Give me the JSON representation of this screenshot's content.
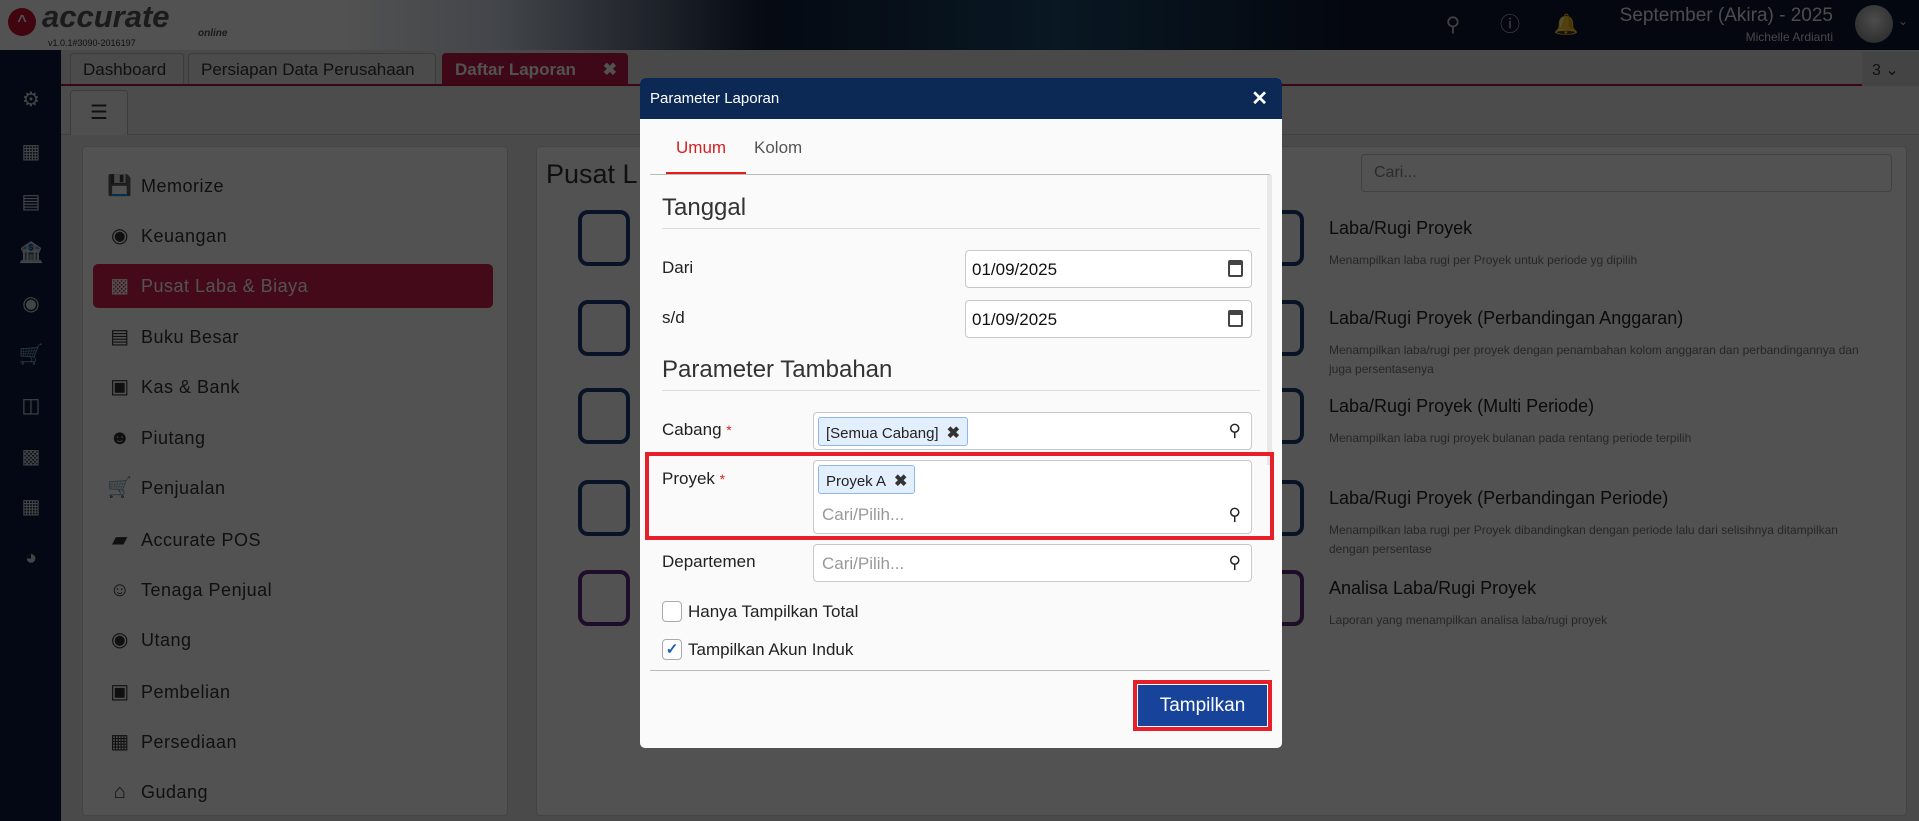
{
  "header": {
    "logo_text": "accurate",
    "logo_sub": "online",
    "version": "v1.0.1#3090-2016197",
    "period": "September (Akira) - 2025",
    "user": "Michelle Ardianti",
    "icons": [
      "search-icon",
      "help-icon",
      "bell-icon"
    ]
  },
  "leftbar": {
    "icons": [
      "gear-icon",
      "building-icon",
      "book-icon",
      "bank-icon",
      "money-bag-icon",
      "cart-icon",
      "purchase-cart-icon",
      "factory-icon",
      "tax-icon",
      "chart-icon"
    ]
  },
  "tabs": [
    {
      "label": "Dashboard"
    },
    {
      "label": "Persiapan Data Perusahaan"
    },
    {
      "label": "Daftar Laporan",
      "active": true
    }
  ],
  "tab_count": "3",
  "nav": [
    {
      "label": "Memorize"
    },
    {
      "label": "Keuangan"
    },
    {
      "label": "Pusat Laba & Biaya",
      "active": true
    },
    {
      "label": "Buku Besar"
    },
    {
      "label": "Kas & Bank"
    },
    {
      "label": "Piutang"
    },
    {
      "label": "Penjualan"
    },
    {
      "label": "Accurate POS"
    },
    {
      "label": "Tenaga Penjual"
    },
    {
      "label": "Utang"
    },
    {
      "label": "Pembelian"
    },
    {
      "label": "Persediaan"
    },
    {
      "label": "Gudang"
    }
  ],
  "main": {
    "title": "Pusat L",
    "search_placeholder": "Cari...",
    "reports": [
      {
        "title": "Laba/Rugi Proyek",
        "desc": "Menampilkan laba rugi per Proyek untuk periode yg dipilih"
      },
      {
        "title": "Laba/Rugi Proyek (Perbandingan Anggaran)",
        "desc": "Menampilkan laba/rugi per proyek dengan penambahan kolom anggaran dan perbandingannya dan juga persentasenya"
      },
      {
        "title": "Laba/Rugi Proyek (Multi Periode)",
        "desc": "Menampilkan laba rugi proyek bulanan pada rentang periode terpilih"
      },
      {
        "title": "Laba/Rugi Proyek (Perbandingan Periode)",
        "desc": "Menampilkan laba rugi per Proyek dibandingkan dengan periode lalu dari selisihnya ditampilkan dengan persentase"
      },
      {
        "title": "Analisa Laba/Rugi Proyek",
        "desc": "Laporan yang menampilkan analisa laba/rugi proyek"
      }
    ]
  },
  "dialog": {
    "title": "Parameter Laporan",
    "tabs": [
      "Umum",
      "Kolom"
    ],
    "section_date": "Tanggal",
    "from_label": "Dari",
    "from_value": "01/09/2025",
    "to_label": "s/d",
    "to_value": "01/09/2025",
    "section_extra": "Parameter Tambahan",
    "branch_label": "Cabang",
    "branch_chip": "[Semua Cabang]",
    "project_label": "Proyek",
    "project_chip": "Proyek A",
    "project_placeholder": "Cari/Pilih...",
    "dept_label": "Departemen",
    "dept_placeholder": "Cari/Pilih...",
    "required_mark": "*",
    "only_total_label": "Hanya Tampilkan Total",
    "only_total_checked": false,
    "show_parent_label": "Tampilkan Akun Induk",
    "show_parent_checked": true,
    "submit_label": "Tampilkan"
  },
  "colors": {
    "brand_red": "#c2184a",
    "dialog_header": "#0c2854",
    "submit": "#17449a",
    "highlight": "#e5202b"
  }
}
